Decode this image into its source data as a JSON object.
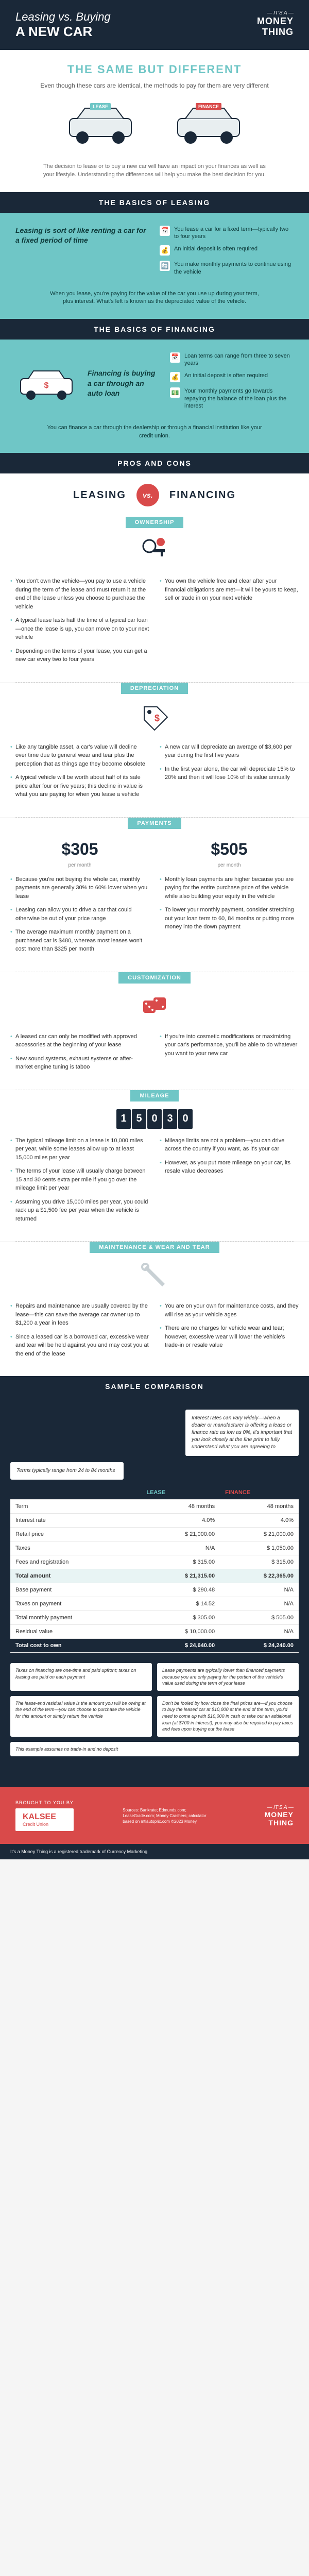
{
  "header": {
    "pretitle": "Leasing vs. Buying",
    "title": "A NEW CAR",
    "brand_its": "— IT'S A —",
    "brand_money": "MONEY",
    "brand_thing": "THING"
  },
  "intro": {
    "heading": "THE SAME BUT DIFFERENT",
    "subtitle": "Even though these cars are identical, the methods to pay for them are very different",
    "lease_tag": "LEASE",
    "finance_tag": "FINANCE",
    "footer": "The decision to lease or to buy a new car will have an impact on your finances as well as your lifestyle. Understanding the differences will help you make the best decision for you."
  },
  "basics_leasing": {
    "band": "THE BASICS OF LEASING",
    "lead": "Leasing is sort of like renting a car for a fixed period of time",
    "bullets": [
      "You lease a car for a fixed term—typically two to four years",
      "An initial deposit is often required",
      "You make monthly payments to continue using the vehicle"
    ],
    "footer": "When you lease, you're paying for the value of the car you use up during your term, plus interest. What's left is known as the depreciated value of the vehicle."
  },
  "basics_financing": {
    "band": "THE BASICS OF FINANCING",
    "lead": "Financing is buying a car through an auto loan",
    "bullets": [
      "Loan terms can range from three to seven years",
      "An initial deposit is often required",
      "Your monthly payments go towards repaying the balance of the loan plus the interest"
    ],
    "footer": "You can finance a car through the dealership or through a financial institution like your credit union."
  },
  "proscons": {
    "band": "PROS AND CONS",
    "leasing_h": "LEASING",
    "vs": "vs.",
    "financing_h": "FINANCING"
  },
  "ownership": {
    "label": "OWNERSHIP",
    "lease": [
      "You don't own the vehicle—you pay to use a vehicle during the term of the lease and must return it at the end of the lease unless you choose to purchase the vehicle",
      "A typical lease lasts half the time of a typical car loan—once the lease is up, you can move on to your next vehicle",
      "Depending on the terms of your lease, you can get a new car every two to four years"
    ],
    "finance": [
      "You own the vehicle free and clear after your financial obligations are met—it will be yours to keep, sell or trade in on your next vehicle"
    ]
  },
  "depreciation": {
    "label": "DEPRECIATION",
    "lease": [
      "Like any tangible asset, a car's value will decline over time due to general wear and tear plus the perception that as things age they become obsolete",
      "A typical vehicle will be worth about half of its sale price after four or five years; this decline in value is what you are paying for when you lease a vehicle"
    ],
    "finance": [
      "A new car will depreciate an average of $3,600 per year during the first five years",
      "In the first year alone, the car will depreciate 15% to 20% and then it will lose 10% of its value annually"
    ]
  },
  "payments": {
    "label": "PAYMENTS",
    "lease_amount": "$305",
    "finance_amount": "$505",
    "unit": "per month",
    "lease": [
      "Because you're not buying the whole car, monthly payments are generally 30% to 60% lower when you lease",
      "Leasing can allow you to drive a car that could otherwise be out of your price range",
      "The average maximum monthly payment on a purchased car is $480, whereas most leases won't cost more than $325 per month"
    ],
    "finance": [
      "Monthly loan payments are higher because you are paying for the entire purchase price of the vehicle while also building your equity in the vehicle",
      "To lower your monthly payment, consider stretching out your loan term to 60, 84 months or putting more money into the down payment"
    ]
  },
  "customization": {
    "label": "CUSTOMIZATION",
    "lease": [
      "A leased car can only be modified with approved accessories at the beginning of your lease",
      "New sound systems, exhaust systems or after-market engine tuning is taboo"
    ],
    "finance": [
      "If you're into cosmetic modifications or maximizing your car's performance, you'll be able to do whatever you want to your new car"
    ]
  },
  "mileage": {
    "label": "MILEAGE",
    "odometer": [
      "1",
      "5",
      "0",
      "3",
      "0"
    ],
    "lease": [
      "The typical mileage limit on a lease is 10,000 miles per year, while some leases allow up to at least 15,000 miles per year",
      "The terms of your lease will usually charge between 15 and 30 cents extra per mile if you go over the mileage limit per year",
      "Assuming you drive 15,000 miles per year, you could rack up a $1,500 fee per year when the vehicle is returned"
    ],
    "finance": [
      "Mileage limits are not a problem—you can drive across the country if you want, as it's your car",
      "However, as you put more mileage on your car, its resale value decreases"
    ]
  },
  "maintenance": {
    "label": "MAINTENANCE & WEAR AND TEAR",
    "lease": [
      "Repairs and maintenance are usually covered by the lease—this can save the average car owner up to $1,200 a year in fees",
      "Since a leased car is a borrowed car, excessive wear and tear will be held against you and may cost you at the end of the lease"
    ],
    "finance": [
      "You are on your own for maintenance costs, and they will rise as your vehicle ages",
      "There are no charges for vehicle wear and tear; however, excessive wear will lower the vehicle's trade-in or resale value"
    ]
  },
  "sample": {
    "band": "SAMPLE COMPARISON",
    "note_rates": "Interest rates can vary widely—when a dealer or manufacturer is offering a lease or finance rate as low as 0%, it's important that you look closely at the fine print to fully understand what you are agreeing to",
    "note_terms": "Terms typically range from 24 to 84 months",
    "table": {
      "head": [
        "",
        "LEASE",
        "FINANCE"
      ],
      "rows": [
        {
          "label": "Term",
          "lease": "48 months",
          "fin": "48 months"
        },
        {
          "label": "Interest rate",
          "lease": "4.0%",
          "fin": "4.0%"
        },
        {
          "label": "Retail price",
          "lease": "$ 21,000.00",
          "fin": "$ 21,000.00"
        },
        {
          "label": "Taxes",
          "lease": "N/A",
          "fin": "$ 1,050.00"
        },
        {
          "label": "Fees and registration",
          "lease": "$ 315.00",
          "fin": "$ 315.00"
        }
      ],
      "total_amount": {
        "label": "Total amount",
        "lease": "$ 21,315.00",
        "fin": "$ 22,365.00"
      },
      "rows2": [
        {
          "label": "Base payment",
          "lease": "$ 290.48",
          "fin": "N/A"
        },
        {
          "label": "Taxes on payment",
          "lease": "$ 14.52",
          "fin": "N/A"
        },
        {
          "label": "Total monthly payment",
          "lease": "$ 305.00",
          "fin": "$ 505.00"
        },
        {
          "label": "Residual value",
          "lease": "$ 10,000.00",
          "fin": "N/A"
        }
      ],
      "total_own": {
        "label": "Total cost to own",
        "lease": "$ 24,640.00",
        "fin": "$ 24,240.00"
      }
    },
    "callouts": [
      "Taxes on financing are one-time and paid upfront; taxes on leasing are paid on each payment",
      "Lease payments are typically lower than financed payments because you are only paying for the portion of the vehicle's value used during the term of your lease",
      "The lease-end residual value is the amount you will be owing at the end of the term—you can choose to purchase the vehicle for this amount or simply return the vehicle",
      "Don't be fooled by how close the final prices are—if you choose to buy the leased car at $10,000 at the end of the term, you'd need to come up with $10,000 in cash or take out an additional loan (at $700 in interest); you may also be required to pay taxes and fees upon buying out the lease",
      "This example assumes no trade-in and no deposit"
    ]
  },
  "footer": {
    "brought": "BROUGHT TO YOU BY",
    "sponsor": "KALSEE",
    "sponsor_sub": "Credit Union",
    "sources": "Sources: Bankrate; Edmunds.com; LeaseGuide.com; Money Crashers; calculator based on mtlautoprix.com ©2023 Money",
    "trademark": "It's a Money Thing is a registered trademark of Currency Marketing"
  },
  "colors": {
    "navy": "#1a2838",
    "teal": "#6fc6c6",
    "red": "#d94a4a",
    "paper": "#ffffff"
  }
}
